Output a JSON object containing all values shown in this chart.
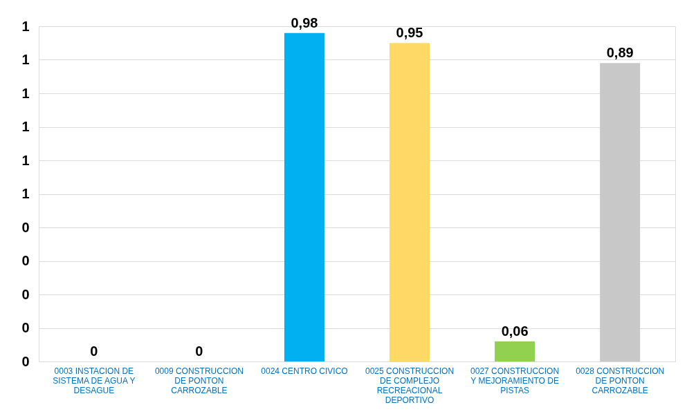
{
  "chart_data": {
    "type": "bar",
    "categories": [
      "0003 INSTACION DE SISTEMA DE AGUA Y DESAGUE",
      "0009 CONSTRUCCION DE PONTON CARROZABLE",
      "0024 CENTRO CIVICO",
      "0025 CONSTRUCCION DE COMPLEJO RECREACIONAL DEPORTIVO",
      "0027 CONSTRUCCION Y MEJORAMIENTO DE PISTAS",
      "0028 CONSTRUCCION DE PONTON CARROZABLE"
    ],
    "values": [
      0,
      0,
      0.98,
      0.95,
      0.06,
      0.89
    ],
    "colors": [
      "#c00000",
      "#00843d",
      "#00b0f0",
      "#ffd966",
      "#92d050",
      "#c8c8c8"
    ],
    "value_labels": [
      "0",
      "0",
      "0,98",
      "0,95",
      "0,06",
      "0,89"
    ],
    "ylim": [
      0,
      1
    ],
    "yticks": [
      0,
      {
        "value": 0.1,
        "label": "0"
      },
      {
        "value": 0.2,
        "label": "0"
      },
      {
        "value": 0.3,
        "label": "0"
      },
      {
        "value": 0.4,
        "label": "0"
      },
      {
        "value": 0.5,
        "label": "1"
      },
      {
        "value": 0.6,
        "label": "1"
      },
      {
        "value": 0.7,
        "label": "1"
      },
      {
        "value": 0.8,
        "label": "1"
      },
      {
        "value": 0.9,
        "label": "1"
      },
      1
    ],
    "grid": "y",
    "legend": false
  }
}
